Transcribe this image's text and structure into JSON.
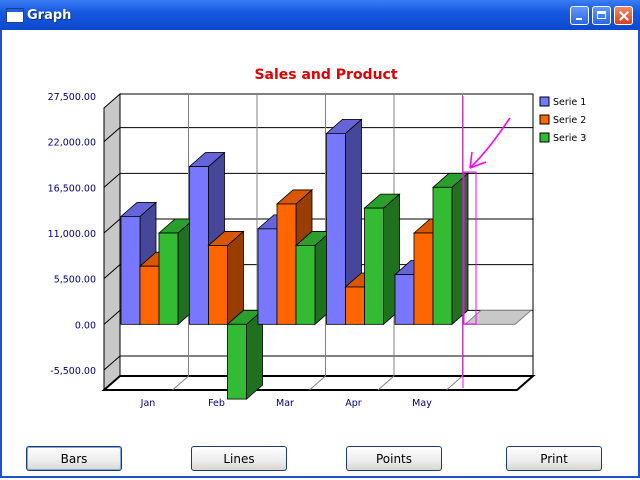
{
  "window": {
    "title": "Graph"
  },
  "buttons": {
    "bars": "Bars",
    "lines": "Lines",
    "points": "Points",
    "print": "Print"
  },
  "chart_data": {
    "type": "bar",
    "title": "Sales and Product",
    "xlabel": "",
    "ylabel": "",
    "categories": [
      "Jan",
      "Feb",
      "Mar",
      "Apr",
      "May"
    ],
    "yticks": [
      "27,500.00",
      "22,000.00",
      "16,500.00",
      "11,000.00",
      "5,500.00",
      "0.00",
      "-5,500.00"
    ],
    "ylim": [
      -9000,
      29000
    ],
    "grid": true,
    "legend": "top-right",
    "series": [
      {
        "name": "Serie 1",
        "values": [
          13000,
          19000,
          11500,
          23000,
          6000
        ],
        "color": "#7777ff"
      },
      {
        "name": "Serie 2",
        "values": [
          7000,
          9500,
          14500,
          4500,
          11000
        ],
        "color": "#ff6600"
      },
      {
        "name": "Serie 3",
        "values": [
          11000,
          -9000,
          9500,
          14000,
          16500
        ],
        "color": "#33bb33"
      }
    ],
    "colors": {
      "title": "#e00000",
      "ticks": "#000080",
      "annotation": "#ff00ff"
    }
  }
}
